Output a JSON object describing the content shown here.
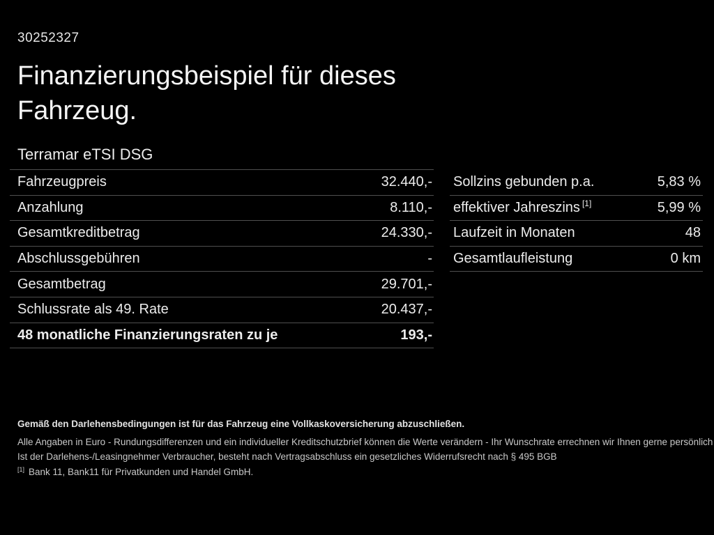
{
  "header": {
    "id_number": "30252327",
    "title_line1": "Finanzierungsbeispiel für dieses",
    "title_line2": "Fahrzeug.",
    "vehicle_name": "Terramar eTSI DSG"
  },
  "finance_table_left": {
    "rows": [
      {
        "label": "Fahrzeugpreis",
        "value": "32.440,-",
        "bold": false
      },
      {
        "label": "Anzahlung",
        "value": "8.110,-",
        "bold": false
      },
      {
        "label": "Gesamtkreditbetrag",
        "value": "24.330,-",
        "bold": false
      },
      {
        "label": "Abschlussgebühren",
        "value": "-",
        "bold": false
      },
      {
        "label": "Gesamtbetrag",
        "value": "29.701,-",
        "bold": false
      },
      {
        "label": "Schlussrate als 49. Rate",
        "value": "20.437,-",
        "bold": false
      },
      {
        "label": "48 monatliche Finanzierungsraten zu je",
        "value": "193,-",
        "bold": true
      }
    ]
  },
  "finance_table_right": {
    "rows": [
      {
        "label": "Sollzins gebunden p.a.",
        "value": "5,83 %",
        "bold": false
      },
      {
        "label": "effektiver Jahreszins",
        "label_sup": "[1]",
        "value": "5,99 %",
        "bold": false
      },
      {
        "label": "Laufzeit in Monaten",
        "value": "48",
        "bold": false
      },
      {
        "label": "Gesamtlaufleistung",
        "value": "0 km",
        "bold": false
      }
    ]
  },
  "fine_print": {
    "insurance_note_bold": "Gemäß den Darlehensbedingungen ist für das Fahrzeug eine Vollkaskoversicherung abzuschließen.",
    "disclaimer_line1": "Alle Angaben in Euro - Rundungsdifferenzen und ein individueller Kreditschutzbrief können die Werte verändern - Ihr Wunschrate errechnen wir Ihnen gerne persönlich",
    "disclaimer_line2": "Ist der Darlehens-/Leasingnehmer Verbraucher, besteht nach Vertragsabschluss ein gesetzliches Widerrufsrecht nach § 495 BGB",
    "footnote_marker": "[1]",
    "footnote_text": "Bank 11, Bank11 für Privatkunden und Handel GmbH."
  },
  "colors": {
    "background": "#000000",
    "text_primary": "#ececec",
    "text_secondary": "#c9c9c9",
    "divider": "#4f4f4f"
  }
}
